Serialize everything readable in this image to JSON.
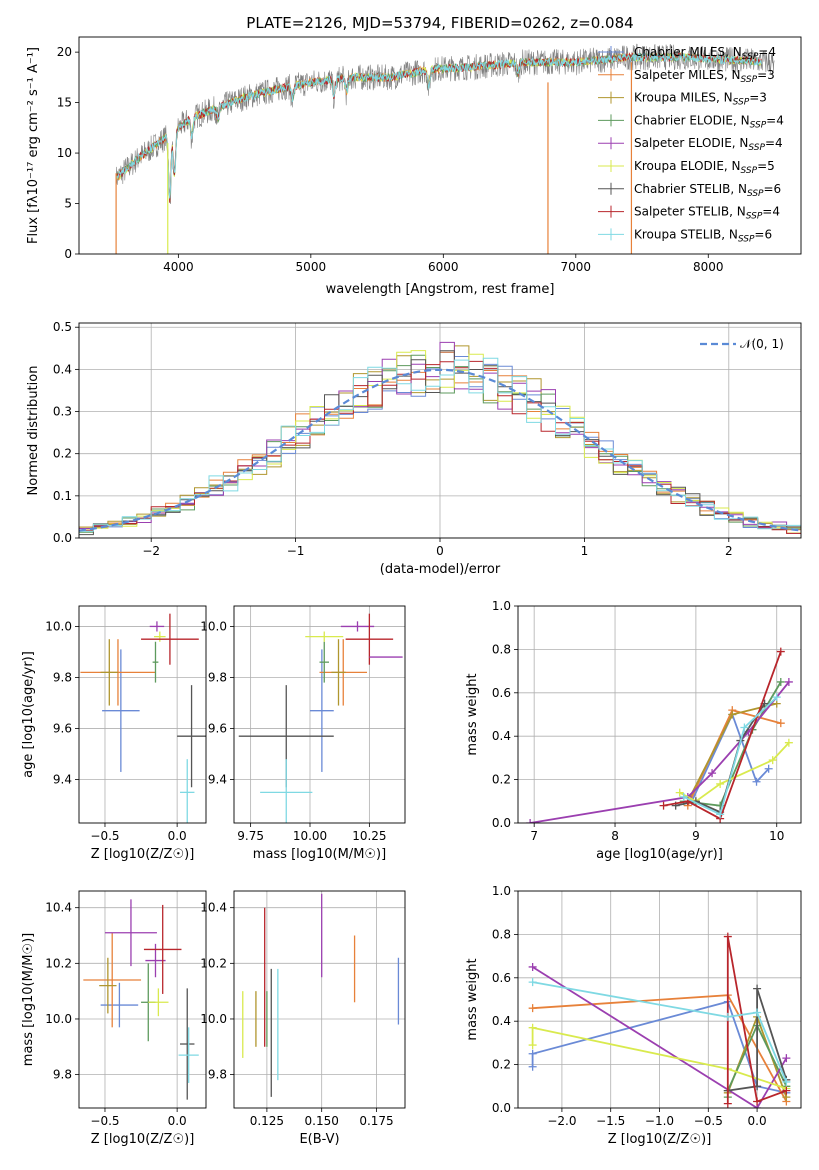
{
  "figure_title": "PLATE=2126, MJD=53794, FIBERID=0262, z=0.084",
  "colors": {
    "chabrier_miles": "#6a8ad6",
    "salpeter_miles": "#e7813a",
    "kroupa_miles": "#b0962e",
    "chabrier_elodie": "#5d9a5d",
    "salpeter_elodie": "#9b3fb0",
    "kroupa_elodie": "#d9ea4e",
    "chabrier_stelib": "#555555",
    "salpeter_stelib": "#b8262c",
    "kroupa_stelib": "#7fd9e3",
    "normal": "#5a8ad6",
    "grid": "#b0b0b0"
  },
  "chart_data": [
    {
      "id": "spectrum",
      "type": "line",
      "title": "PLATE=2126, MJD=53794, FIBERID=0262, z=0.084",
      "xlabel": "wavelength [Angstrom, rest frame]",
      "ylabel": "Flux [fλ10⁻¹⁷ erg cm⁻² s⁻¹ A⁻¹]",
      "xlim": [
        3250,
        8700
      ],
      "ylim": [
        0,
        21.5
      ],
      "xticks": [
        4000,
        5000,
        6000,
        7000,
        8000
      ],
      "yticks": [
        0,
        5,
        10,
        15,
        20
      ],
      "grid": false,
      "legend_position": "upper-right",
      "legend": [
        {
          "label": "Chabrier MILES, N",
          "sub": "SSP",
          "suffix": "=4",
          "color": "#6a8ad6"
        },
        {
          "label": "Salpeter MILES, N",
          "sub": "SSP",
          "suffix": "=3",
          "color": "#e7813a"
        },
        {
          "label": "Kroupa MILES, N",
          "sub": "SSP",
          "suffix": "=3",
          "color": "#b0962e"
        },
        {
          "label": "Chabrier ELODIE, N",
          "sub": "SSP",
          "suffix": "=4",
          "color": "#5d9a5d"
        },
        {
          "label": "Salpeter ELODIE, N",
          "sub": "SSP",
          "suffix": "=4",
          "color": "#9b3fb0"
        },
        {
          "label": "Kroupa ELODIE, N",
          "sub": "SSP",
          "suffix": "=5",
          "color": "#d9ea4e"
        },
        {
          "label": "Chabrier STELIB, N",
          "sub": "SSP",
          "suffix": "=6",
          "color": "#555555"
        },
        {
          "label": "Salpeter STELIB, N",
          "sub": "SSP",
          "suffix": "=4",
          "color": "#b8262c"
        },
        {
          "label": "Kroupa STELIB, N",
          "sub": "SSP",
          "suffix": "=6",
          "color": "#7fd9e3"
        }
      ],
      "continuum": [
        [
          3530,
          7.5
        ],
        [
          3700,
          9.5
        ],
        [
          3900,
          11.5
        ],
        [
          4000,
          12.5
        ],
        [
          4100,
          13.5
        ],
        [
          4300,
          14.5
        ],
        [
          4500,
          15.5
        ],
        [
          4800,
          16.5
        ],
        [
          5000,
          17
        ],
        [
          5300,
          17.5
        ],
        [
          5600,
          17.5
        ],
        [
          5900,
          18.3
        ],
        [
          6200,
          18.5
        ],
        [
          6600,
          19
        ],
        [
          7000,
          19
        ],
        [
          7400,
          19.5
        ],
        [
          7800,
          19.5
        ],
        [
          8200,
          19.2
        ],
        [
          8500,
          19
        ]
      ],
      "absorption_features": [
        [
          3935,
          3
        ],
        [
          3970,
          6
        ],
        [
          4101,
          11
        ],
        [
          4300,
          13
        ],
        [
          4861,
          14.8
        ],
        [
          5175,
          15
        ],
        [
          5270,
          15.5
        ],
        [
          5890,
          16
        ],
        [
          6563,
          17.5
        ],
        [
          8500,
          18
        ],
        [
          8542,
          17.5
        ],
        [
          8662,
          17.5
        ]
      ]
    },
    {
      "id": "residuals",
      "type": "histogram",
      "xlabel": "(data-model)/error",
      "ylabel": "Normed distribution",
      "xlim": [
        -2.5,
        2.5
      ],
      "ylim": [
        0,
        0.51
      ],
      "xticks": [
        -2,
        -1,
        0,
        1,
        2
      ],
      "yticks": [
        0.0,
        0.1,
        0.2,
        0.3,
        0.4,
        0.5
      ],
      "grid": true,
      "legend_position": "upper-right",
      "legend": [
        {
          "label": "N(0,1)",
          "color": "#5a8ad6",
          "style": "dashed"
        }
      ],
      "bin_width": 0.1
    },
    {
      "id": "age_vs_Z",
      "type": "errorbar",
      "xlabel": "Z [log10(Z/Z☉)]",
      "ylabel": "age [log10(age/yr)]",
      "xlim": [
        -0.68,
        0.2
      ],
      "ylim": [
        9.23,
        10.08
      ],
      "xticks": [
        -0.5,
        0.0
      ],
      "yticks": [
        9.4,
        9.6,
        9.8,
        10.0
      ],
      "grid": true,
      "points": [
        {
          "series": "Chabrier MILES",
          "x": -0.39,
          "xerr": 0.13,
          "y": 9.67,
          "yerr": 0.24
        },
        {
          "series": "Salpeter MILES",
          "x": -0.41,
          "xerr": 0.26,
          "y": 9.82,
          "yerr": 0.13
        },
        {
          "series": "Kroupa MILES",
          "x": -0.47,
          "xerr": 0.06,
          "y": 9.82,
          "yerr": 0.13
        },
        {
          "series": "Chabrier ELODIE",
          "x": -0.15,
          "xerr": 0.02,
          "y": 9.86,
          "yerr": 0.08
        },
        {
          "series": "Salpeter ELODIE",
          "x": -0.14,
          "xerr": 0.05,
          "y": 10.0,
          "yerr": 0.02
        },
        {
          "series": "Kroupa ELODIE",
          "x": -0.12,
          "xerr": 0.04,
          "y": 9.96,
          "yerr": 0.02
        },
        {
          "series": "Chabrier STELIB",
          "x": 0.1,
          "xerr": 0.1,
          "y": 9.57,
          "yerr": 0.2
        },
        {
          "series": "Salpeter STELIB",
          "x": -0.05,
          "xerr": 0.2,
          "y": 9.95,
          "yerr": 0.1
        },
        {
          "series": "Kroupa STELIB",
          "x": 0.07,
          "xerr": 0.05,
          "y": 9.35,
          "yerr": 0.13
        }
      ]
    },
    {
      "id": "age_vs_mass",
      "type": "errorbar",
      "xlabel": "mass [log10(M/M☉)]",
      "ylabel": "",
      "xlim": [
        9.68,
        10.4
      ],
      "ylim": [
        9.23,
        10.08
      ],
      "xticks": [
        9.75,
        10.0,
        10.25
      ],
      "yticks": [
        9.4,
        9.6,
        9.8,
        10.0
      ],
      "grid": true,
      "points": [
        {
          "series": "Chabrier MILES",
          "x": 10.05,
          "xerr": 0.05,
          "y": 9.67,
          "yerr": 0.24
        },
        {
          "series": "Salpeter MILES",
          "x": 10.14,
          "xerr": 0.1,
          "y": 9.82,
          "yerr": 0.13
        },
        {
          "series": "Kroupa MILES",
          "x": 10.12,
          "xerr": 0.03,
          "y": 9.82,
          "yerr": 0.13
        },
        {
          "series": "Chabrier ELODIE",
          "x": 10.06,
          "xerr": 0.02,
          "y": 9.86,
          "yerr": 0.08
        },
        {
          "series": "Salpeter ELODIE",
          "x": 10.2,
          "xerr": 0.07,
          "y": 10.0,
          "yerr": 0.02
        },
        {
          "series": "Kroupa ELODIE",
          "x": 10.06,
          "xerr": 0.08,
          "y": 9.96,
          "yerr": 0.02
        },
        {
          "series": "Chabrier STELIB",
          "x": 9.9,
          "xerr": 0.2,
          "y": 9.57,
          "yerr": 0.2
        },
        {
          "series": "Salpeter STELIB",
          "x": 10.25,
          "xerr": 0.1,
          "y": 9.95,
          "yerr": 0.1
        },
        {
          "series": "Kroupa STELIB",
          "x": 9.9,
          "xerr": 0.11,
          "y": 9.35,
          "yerr": 0.13
        },
        {
          "series": "Salpeter ELODIE",
          "x": 10.32,
          "xerr": 0.07,
          "y": 9.88,
          "yerr": 0.0
        }
      ]
    },
    {
      "id": "massweight_vs_age",
      "type": "line",
      "xlabel": "age [log10(age/yr)]",
      "ylabel": "mass weight",
      "xlim": [
        6.8,
        10.3
      ],
      "ylim": [
        0,
        1.0
      ],
      "xticks": [
        7,
        8,
        9,
        10
      ],
      "yticks": [
        0.0,
        0.2,
        0.4,
        0.6,
        0.8,
        1.0
      ],
      "grid": true,
      "series": [
        {
          "name": "Chabrier MILES",
          "x": [
            8.95,
            9.45,
            9.75,
            9.9
          ],
          "y": [
            0.1,
            0.5,
            0.19,
            0.25
          ]
        },
        {
          "name": "Salpeter MILES",
          "x": [
            8.9,
            9.45,
            10.05
          ],
          "y": [
            0.08,
            0.52,
            0.46
          ]
        },
        {
          "name": "Kroupa MILES",
          "x": [
            8.9,
            9.45,
            10.0
          ],
          "y": [
            0.1,
            0.5,
            0.55
          ]
        },
        {
          "name": "Chabrier ELODIE",
          "x": [
            8.85,
            9.3,
            9.7,
            10.05
          ],
          "y": [
            0.1,
            0.08,
            0.43,
            0.65
          ]
        },
        {
          "name": "Salpeter ELODIE",
          "x": [
            6.95,
            8.9,
            9.2,
            9.65,
            10.15
          ],
          "y": [
            0.0,
            0.12,
            0.23,
            0.42,
            0.65
          ]
        },
        {
          "name": "Kroupa ELODIE",
          "x": [
            8.8,
            9.0,
            9.3,
            9.95,
            10.15
          ],
          "y": [
            0.14,
            0.1,
            0.18,
            0.29,
            0.37
          ]
        },
        {
          "name": "Chabrier STELIB",
          "x": [
            8.75,
            9.0,
            9.3,
            9.55,
            9.85
          ],
          "y": [
            0.08,
            0.1,
            0.05,
            0.38,
            0.55
          ]
        },
        {
          "name": "Salpeter STELIB",
          "x": [
            8.6,
            8.9,
            9.3,
            10.05
          ],
          "y": [
            0.08,
            0.1,
            0.02,
            0.79
          ]
        },
        {
          "name": "Kroupa STELIB",
          "x": [
            8.85,
            9.3,
            9.6,
            10.0
          ],
          "y": [
            0.12,
            0.04,
            0.44,
            0.58
          ]
        }
      ]
    },
    {
      "id": "mass_vs_Z",
      "type": "errorbar",
      "xlabel": "Z [log10(Z/Z☉)]",
      "ylabel": "mass [log10(M/M☉)]",
      "xlim": [
        -0.68,
        0.2
      ],
      "ylim": [
        9.68,
        10.46
      ],
      "xticks": [
        -0.5,
        0.0
      ],
      "yticks": [
        9.8,
        10.0,
        10.2,
        10.4
      ],
      "grid": true,
      "points": [
        {
          "series": "Chabrier MILES",
          "x": -0.4,
          "xerr": 0.13,
          "y": 10.05,
          "yerr": 0.08
        },
        {
          "series": "Salpeter MILES",
          "x": -0.45,
          "xerr": 0.2,
          "y": 10.14,
          "yerr": 0.17
        },
        {
          "series": "Kroupa MILES",
          "x": -0.48,
          "xerr": 0.06,
          "y": 10.12,
          "yerr": 0.1
        },
        {
          "series": "Chabrier ELODIE",
          "x": -0.2,
          "xerr": 0.05,
          "y": 10.06,
          "yerr": 0.14
        },
        {
          "series": "Salpeter ELODIE",
          "x": -0.15,
          "xerr": 0.07,
          "y": 10.21,
          "yerr": 0.06
        },
        {
          "series": "Kroupa ELODIE",
          "x": -0.13,
          "xerr": 0.07,
          "y": 10.06,
          "yerr": 0.05
        },
        {
          "series": "Chabrier STELIB",
          "x": 0.07,
          "xerr": 0.05,
          "y": 9.91,
          "yerr": 0.2
        },
        {
          "series": "Salpeter STELIB",
          "x": -0.1,
          "xerr": 0.13,
          "y": 10.25,
          "yerr": 0.16
        },
        {
          "series": "Kroupa STELIB",
          "x": 0.08,
          "xerr": 0.07,
          "y": 9.87,
          "yerr": 0.1
        },
        {
          "series": "Salpeter ELODIE",
          "x": -0.32,
          "xerr": 0.18,
          "y": 10.31,
          "yerr": 0.12
        }
      ]
    },
    {
      "id": "mass_vs_ebv",
      "type": "errorbar",
      "xlabel": "E(B-V)",
      "ylabel": "",
      "xlim": [
        0.11,
        0.188
      ],
      "ylim": [
        9.68,
        10.46
      ],
      "xticks": [
        0.125,
        0.15,
        0.175
      ],
      "yticks": [
        9.8,
        10.0,
        10.2,
        10.4
      ],
      "grid": true,
      "points": [
        {
          "series": "Chabrier MILES",
          "x": 0.185,
          "y": 10.1,
          "yerr": 0.12
        },
        {
          "series": "Salpeter MILES",
          "x": 0.165,
          "y": 10.18,
          "yerr": 0.12
        },
        {
          "series": "Kroupa MILES",
          "x": 0.12,
          "y": 10.0,
          "yerr": 0.1
        },
        {
          "series": "Chabrier ELODIE",
          "x": 0.125,
          "y": 10.0,
          "yerr": 0.1
        },
        {
          "series": "Salpeter ELODIE",
          "x": 0.15,
          "y": 10.3,
          "yerr": 0.15
        },
        {
          "series": "Kroupa ELODIE",
          "x": 0.114,
          "y": 9.98,
          "yerr": 0.12
        },
        {
          "series": "Chabrier STELIB",
          "x": 0.127,
          "y": 9.95,
          "yerr": 0.23
        },
        {
          "series": "Salpeter STELIB",
          "x": 0.124,
          "y": 10.15,
          "yerr": 0.25
        },
        {
          "series": "Kroupa STELIB",
          "x": 0.13,
          "y": 9.98,
          "yerr": 0.2
        }
      ]
    },
    {
      "id": "massweight_vs_Z",
      "type": "line",
      "xlabel": "Z [log10(Z/Z☉)]",
      "ylabel": "mass weight",
      "xlim": [
        -2.45,
        0.45
      ],
      "ylim": [
        0,
        1.0
      ],
      "xticks": [
        -2.0,
        -1.5,
        -1.0,
        -0.5,
        0.0
      ],
      "yticks": [
        0.0,
        0.2,
        0.4,
        0.6,
        0.8,
        1.0
      ],
      "grid": true,
      "series": [
        {
          "name": "Chabrier MILES",
          "x": [
            -2.3,
            -2.3,
            -0.3,
            0.0,
            0.3
          ],
          "y": [
            0.19,
            0.25,
            0.49,
            0.1,
            0.07
          ]
        },
        {
          "name": "Salpeter MILES",
          "x": [
            -2.3,
            -0.3,
            0.3
          ],
          "y": [
            0.46,
            0.52,
            0.03
          ]
        },
        {
          "name": "Kroupa MILES",
          "x": [
            -0.3,
            0.0,
            0.3
          ],
          "y": [
            0.07,
            0.42,
            0.05
          ]
        },
        {
          "name": "Chabrier ELODIE",
          "x": [
            -0.3,
            -0.3,
            0.0,
            0.3
          ],
          "y": [
            0.05,
            0.08,
            0.38,
            0.1
          ]
        },
        {
          "name": "Salpeter ELODIE",
          "x": [
            -2.3,
            0.0,
            0.3
          ],
          "y": [
            0.65,
            0.0,
            0.23
          ]
        },
        {
          "name": "Kroupa ELODIE",
          "x": [
            -2.3,
            -2.3,
            -0.3,
            0.3
          ],
          "y": [
            0.29,
            0.37,
            0.18,
            0.09
          ]
        },
        {
          "name": "Chabrier STELIB",
          "x": [
            -0.3,
            0.0,
            0.0,
            0.3
          ],
          "y": [
            0.08,
            0.1,
            0.55,
            0.13
          ]
        },
        {
          "name": "Salpeter STELIB",
          "x": [
            -0.3,
            -0.3,
            0.0,
            0.3
          ],
          "y": [
            0.02,
            0.79,
            0.03,
            0.08
          ]
        },
        {
          "name": "Kroupa STELIB",
          "x": [
            -2.3,
            -0.3,
            0.0,
            0.3
          ],
          "y": [
            0.58,
            0.42,
            0.44,
            0.12
          ]
        }
      ]
    }
  ]
}
